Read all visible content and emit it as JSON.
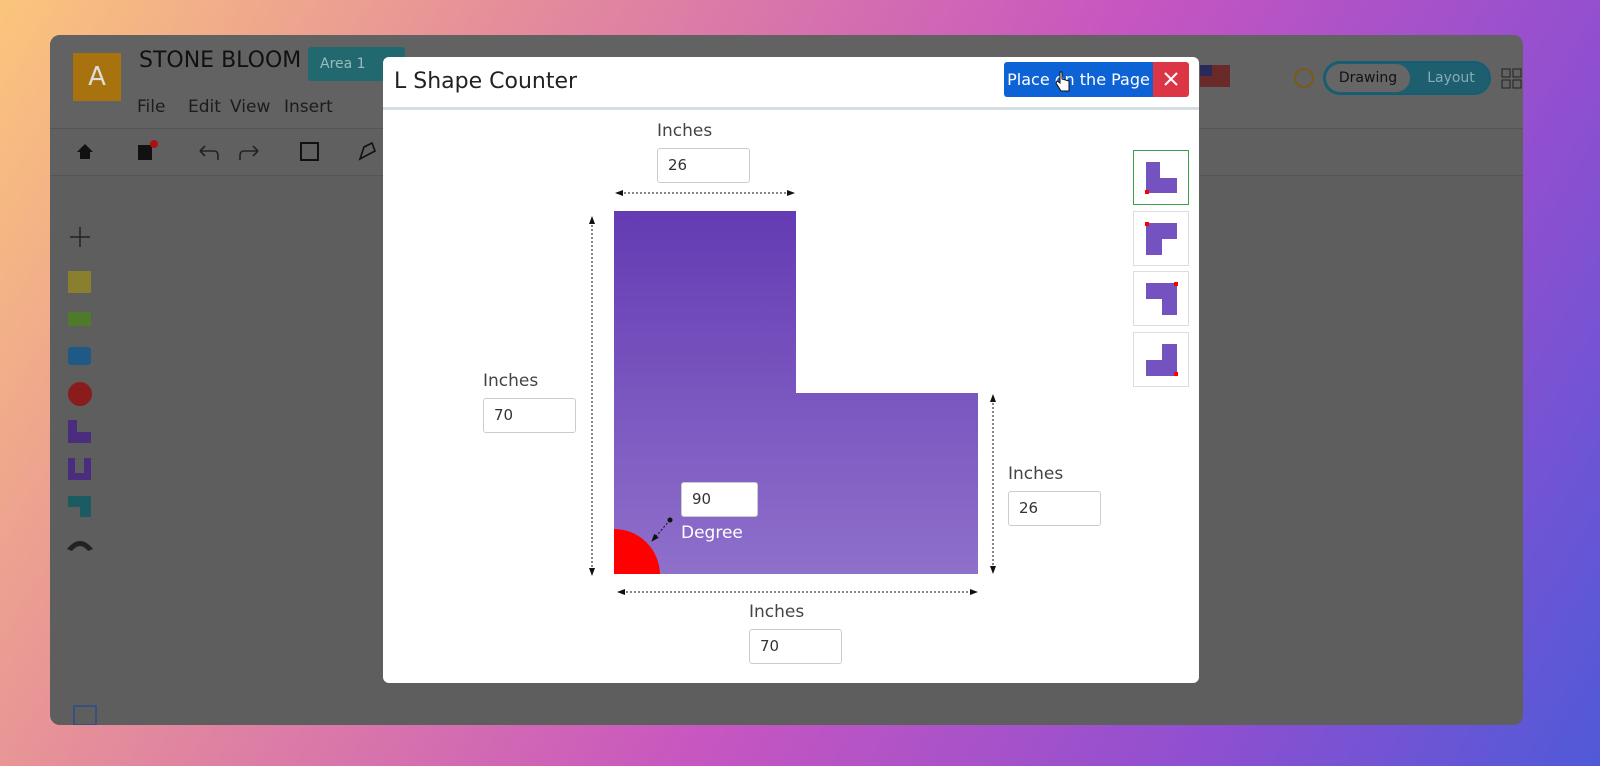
{
  "app": {
    "logo": "A",
    "title": "STONE BLOOM",
    "area": "Area 1",
    "menu": [
      "File",
      "Edit",
      "View",
      "Insert"
    ],
    "toggle": [
      "Drawing",
      "Layout"
    ]
  },
  "modal": {
    "title": "L Shape Counter",
    "place_button": "Place on the Page",
    "top": {
      "label": "Inches",
      "value": 26
    },
    "left": {
      "label": "Inches",
      "value": 70
    },
    "right": {
      "label": "Inches",
      "value": 26
    },
    "bottom": {
      "label": "Inches",
      "value": 70
    },
    "angle": {
      "label": "Degree",
      "value": 90
    }
  }
}
